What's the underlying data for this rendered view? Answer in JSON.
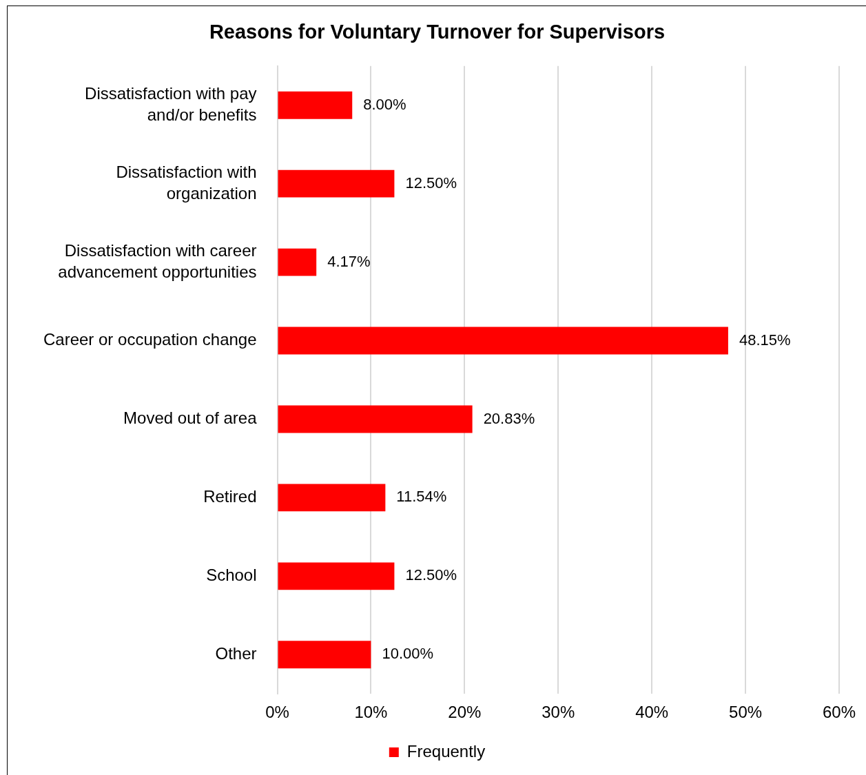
{
  "chart_data": {
    "type": "bar",
    "orientation": "horizontal",
    "title": "Reasons for Voluntary Turnover for Supervisors",
    "categories": [
      "Dissatisfaction with pay and/or benefits",
      "Dissatisfaction with organization",
      "Dissatisfaction with career advancement opportunities",
      "Career or occupation change",
      "Moved out of area",
      "Retired",
      "School",
      "Other"
    ],
    "series": [
      {
        "name": "Frequently",
        "color": "#ff0000",
        "values": [
          8,
          12.5,
          4.17,
          48.15,
          20.83,
          11.54,
          12.5,
          10
        ],
        "value_labels": [
          "8.00%",
          "12.50%",
          "4.17%",
          "48.15%",
          "20.83%",
          "11.54%",
          "12.50%",
          "10.00%"
        ]
      }
    ],
    "xlim": [
      0,
      60
    ],
    "xticks": [
      {
        "value": 0,
        "label": "0%"
      },
      {
        "value": 10,
        "label": "10%"
      },
      {
        "value": 20,
        "label": "20%"
      },
      {
        "value": 30,
        "label": "30%"
      },
      {
        "value": 40,
        "label": "40%"
      },
      {
        "value": 50,
        "label": "50%"
      },
      {
        "value": 60,
        "label": "60%"
      }
    ],
    "grid": "x",
    "legend": "bottom",
    "data_labels": true
  }
}
